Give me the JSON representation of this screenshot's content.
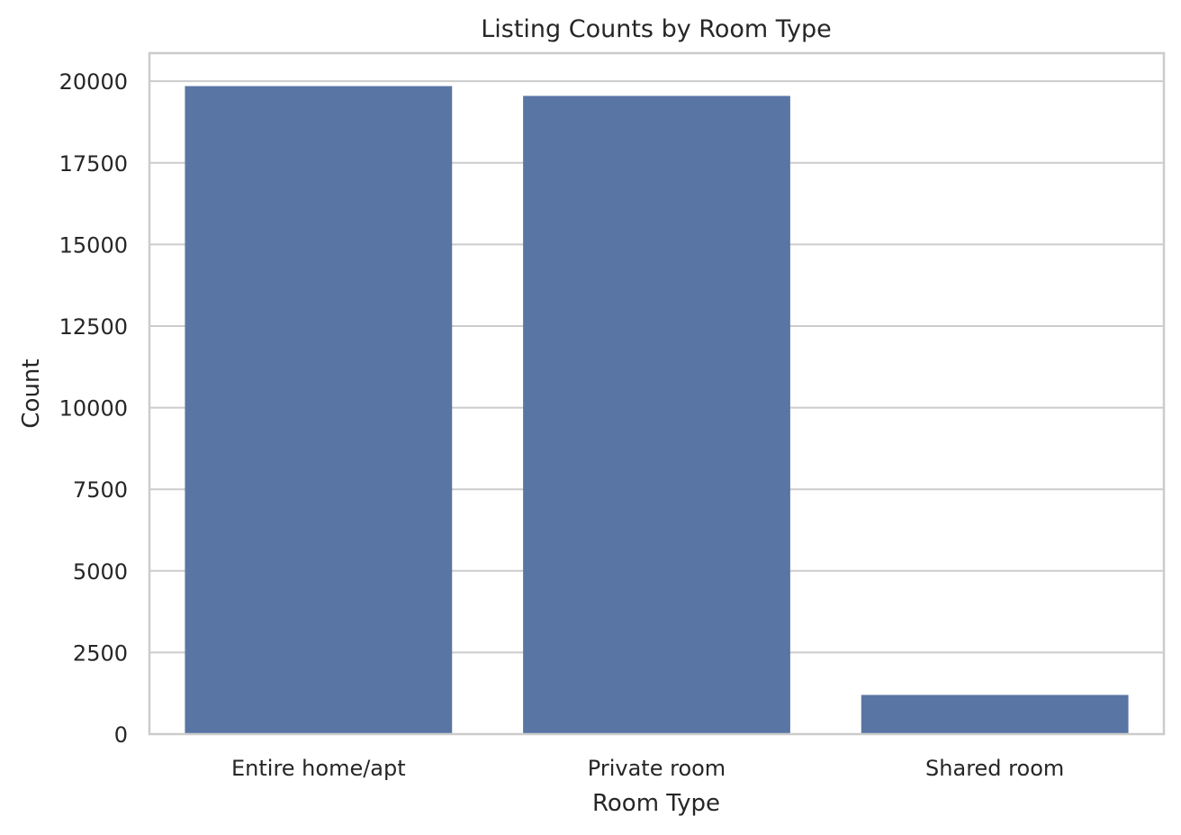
{
  "chart_data": {
    "type": "bar",
    "title": "Listing Counts by Room Type",
    "xlabel": "Room Type",
    "ylabel": "Count",
    "categories": [
      "Entire home/apt",
      "Private room",
      "Shared room"
    ],
    "values": [
      19850,
      19550,
      1200
    ],
    "ylim": [
      0,
      20860
    ],
    "yticks": [
      0,
      2500,
      5000,
      7500,
      10000,
      12500,
      15000,
      17500,
      20000
    ],
    "grid": "horizontal",
    "bar_color": "#5975a4",
    "grid_color": "#cccccc",
    "background_color": "#ffffff"
  }
}
